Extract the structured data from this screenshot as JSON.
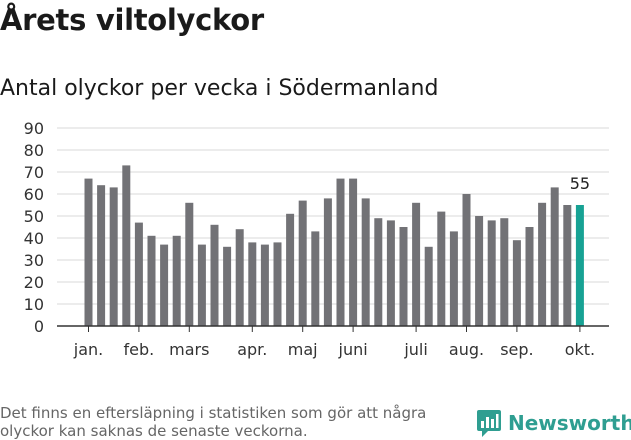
{
  "title": "Årets viltolyckor",
  "subtitle": "Antal olyckor per vecka i Södermanland",
  "footnote": "Det finns en eftersläpning i statistiken som gör att några olyckor kan saknas de senaste veckorna.",
  "brand": {
    "name": "Newsworthy",
    "icon": "newsworthy-logo-icon"
  },
  "colors": {
    "bar": "#727276",
    "highlight": "#17a294",
    "grid": "#d9d9d9",
    "axis": "#333333"
  },
  "chart_data": {
    "type": "bar",
    "title": "Antal olyckor per vecka i Södermanland",
    "xlabel": "",
    "ylabel": "",
    "ylim": [
      0,
      90
    ],
    "yticks": [
      0,
      10,
      20,
      30,
      40,
      50,
      60,
      70,
      80,
      90
    ],
    "grid": true,
    "weeks": [
      1,
      2,
      3,
      4,
      5,
      6,
      7,
      8,
      9,
      10,
      11,
      12,
      13,
      14,
      15,
      16,
      17,
      18,
      19,
      20,
      21,
      22,
      23,
      24,
      25,
      26,
      27,
      28,
      29,
      30,
      31,
      32,
      33,
      34,
      35,
      36,
      37,
      38,
      39,
      40
    ],
    "values": [
      67,
      64,
      63,
      73,
      47,
      41,
      37,
      41,
      56,
      37,
      46,
      36,
      44,
      38,
      37,
      38,
      51,
      57,
      43,
      58,
      67,
      67,
      58,
      49,
      48,
      45,
      56,
      36,
      52,
      43,
      60,
      50,
      48,
      49,
      39,
      45,
      56,
      63,
      55,
      55
    ],
    "highlight_index": 39,
    "highlight_label": "55",
    "month_labels": [
      {
        "label": "jan.",
        "week": 1
      },
      {
        "label": "feb.",
        "week": 5
      },
      {
        "label": "mars",
        "week": 9
      },
      {
        "label": "apr.",
        "week": 14
      },
      {
        "label": "maj",
        "week": 18
      },
      {
        "label": "juni",
        "week": 22
      },
      {
        "label": "juli",
        "week": 27
      },
      {
        "label": "aug.",
        "week": 31
      },
      {
        "label": "sep.",
        "week": 35
      },
      {
        "label": "okt.",
        "week": 40
      }
    ]
  }
}
